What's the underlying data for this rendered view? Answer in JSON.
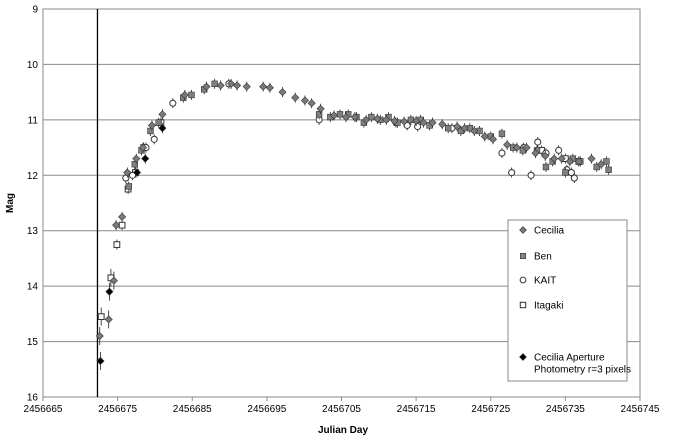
{
  "chart_data": {
    "type": "scatter",
    "xlabel": "Julian Day",
    "ylabel": "Mag",
    "xlim": [
      2456665,
      2456745
    ],
    "ylim": [
      9,
      16
    ],
    "y_inverted": true,
    "grid": "horizontal",
    "legend_position": "right",
    "x_ticks": [
      "2456665",
      "2456675",
      "2456685",
      "2456695",
      "2456705",
      "2456715",
      "2456725",
      "2456735",
      "2456745"
    ],
    "y_ticks": [
      "9",
      "10",
      "11",
      "12",
      "13",
      "14",
      "15",
      "16"
    ],
    "vertical_marker_x": 2456672.3,
    "series": [
      {
        "name": "Cecilia",
        "marker": "diamond-gray",
        "points": [
          [
            2456672.6,
            14.9
          ],
          [
            2456673.8,
            14.6
          ],
          [
            2456674.5,
            13.9
          ],
          [
            2456674.8,
            12.9
          ],
          [
            2456675.6,
            12.75
          ],
          [
            2456676.3,
            11.95
          ],
          [
            2456677.5,
            11.7
          ],
          [
            2456678.4,
            11.5
          ],
          [
            2456679.6,
            11.1
          ],
          [
            2456681.0,
            10.9
          ],
          [
            2456684.0,
            10.55
          ],
          [
            2456686.9,
            10.4
          ],
          [
            2456688.8,
            10.38
          ],
          [
            2456690.2,
            10.35
          ],
          [
            2456691.0,
            10.38
          ],
          [
            2456692.3,
            10.4
          ],
          [
            2456694.5,
            10.4
          ],
          [
            2456695.4,
            10.42
          ],
          [
            2456697.1,
            10.5
          ],
          [
            2456698.8,
            10.6
          ],
          [
            2456700.1,
            10.65
          ],
          [
            2456701.0,
            10.7
          ],
          [
            2456702.2,
            10.8
          ],
          [
            2456704.0,
            10.92
          ],
          [
            2456705.6,
            10.95
          ],
          [
            2456706.8,
            10.95
          ],
          [
            2456708.3,
            11.0
          ],
          [
            2456709.8,
            10.98
          ],
          [
            2456711.0,
            11.0
          ],
          [
            2456712.1,
            11.02
          ],
          [
            2456713.4,
            11.03
          ],
          [
            2456715.0,
            11.02
          ],
          [
            2456716.0,
            11.05
          ],
          [
            2456717.2,
            11.05
          ],
          [
            2456718.5,
            11.08
          ],
          [
            2456720.5,
            11.12
          ],
          [
            2456721.5,
            11.15
          ],
          [
            2456722.8,
            11.2
          ],
          [
            2456724.2,
            11.3
          ],
          [
            2456725.3,
            11.35
          ],
          [
            2456727.2,
            11.45
          ],
          [
            2456728.5,
            11.5
          ],
          [
            2456729.8,
            11.5
          ],
          [
            2456731.0,
            11.6
          ],
          [
            2456732.3,
            11.65
          ],
          [
            2456733.5,
            11.7
          ],
          [
            2456734.5,
            11.7
          ],
          [
            2456735.6,
            11.75
          ],
          [
            2456736.8,
            11.75
          ],
          [
            2456738.5,
            11.7
          ],
          [
            2456739.8,
            11.8
          ]
        ]
      },
      {
        "name": "Ben",
        "marker": "square-gray",
        "points": [
          [
            2456676.5,
            12.2
          ],
          [
            2456677.3,
            11.8
          ],
          [
            2456678.2,
            11.55
          ],
          [
            2456679.4,
            11.2
          ],
          [
            2456680.5,
            11.05
          ],
          [
            2456683.8,
            10.6
          ],
          [
            2456684.9,
            10.55
          ],
          [
            2456686.6,
            10.45
          ],
          [
            2456688.0,
            10.35
          ],
          [
            2456702.0,
            10.9
          ],
          [
            2456703.5,
            10.95
          ],
          [
            2456704.8,
            10.9
          ],
          [
            2456705.9,
            10.9
          ],
          [
            2456707.0,
            10.95
          ],
          [
            2456708.0,
            11.05
          ],
          [
            2456709.0,
            10.95
          ],
          [
            2456710.2,
            11.0
          ],
          [
            2456711.3,
            10.95
          ],
          [
            2456712.5,
            11.05
          ],
          [
            2456714.3,
            11.0
          ],
          [
            2456715.6,
            11.0
          ],
          [
            2456716.8,
            11.1
          ],
          [
            2456719.3,
            11.15
          ],
          [
            2456721.0,
            11.2
          ],
          [
            2456722.2,
            11.15
          ],
          [
            2456723.5,
            11.2
          ],
          [
            2456725.0,
            11.3
          ],
          [
            2456726.5,
            11.25
          ],
          [
            2456728.0,
            11.5
          ],
          [
            2456729.3,
            11.55
          ],
          [
            2456731.2,
            11.55
          ],
          [
            2456732.4,
            11.85
          ],
          [
            2456733.3,
            11.75
          ],
          [
            2456735.0,
            11.95
          ],
          [
            2456736.0,
            11.7
          ],
          [
            2456737.0,
            11.75
          ],
          [
            2456739.2,
            11.85
          ],
          [
            2456740.5,
            11.75
          ],
          [
            2456740.8,
            11.9
          ]
        ]
      },
      {
        "name": "KAIT",
        "marker": "circle-open",
        "points": [
          [
            2456676.1,
            12.05
          ],
          [
            2456677.0,
            12.0
          ],
          [
            2456678.8,
            11.5
          ],
          [
            2456679.9,
            11.35
          ],
          [
            2456682.4,
            10.7
          ],
          [
            2456689.9,
            10.35
          ],
          [
            2456702.0,
            11.0
          ],
          [
            2456712.3,
            11.05
          ],
          [
            2456713.8,
            11.1
          ],
          [
            2456715.2,
            11.12
          ],
          [
            2456719.8,
            11.15
          ],
          [
            2456726.5,
            11.6
          ],
          [
            2456727.8,
            11.95
          ],
          [
            2456729.4,
            11.5
          ],
          [
            2456730.4,
            12.0
          ],
          [
            2456731.3,
            11.4
          ],
          [
            2456732.4,
            11.6
          ],
          [
            2456734.1,
            11.55
          ],
          [
            2456735.2,
            11.9
          ],
          [
            2456736.2,
            12.05
          ],
          [
            2456735.8,
            11.95
          ]
        ]
      },
      {
        "name": "Itagaki",
        "marker": "square-open",
        "points": [
          [
            2456672.8,
            14.55
          ],
          [
            2456674.1,
            13.85
          ],
          [
            2456674.9,
            13.25
          ],
          [
            2456675.6,
            12.9
          ],
          [
            2456676.4,
            12.25
          ],
          [
            2456677.4,
            11.95
          ],
          [
            2456678.5,
            11.5
          ],
          [
            2456680.8,
            11.05
          ],
          [
            2456731.8,
            11.55
          ],
          [
            2456735.0,
            11.7
          ],
          [
            2456736.8,
            11.75
          ]
        ]
      },
      {
        "name": "Cecilia Aperture Photometry r=3 pixels",
        "marker": "diamond-black",
        "points": [
          [
            2456672.7,
            15.35
          ],
          [
            2456673.9,
            14.1
          ],
          [
            2456677.6,
            11.95
          ],
          [
            2456678.7,
            11.7
          ],
          [
            2456681.0,
            11.15
          ]
        ]
      }
    ]
  },
  "legend": {
    "items": [
      {
        "key": "cecilia",
        "label_lines": [
          "Cecilia"
        ]
      },
      {
        "key": "ben",
        "label_lines": [
          "Ben"
        ]
      },
      {
        "key": "kait",
        "label_lines": [
          "KAIT"
        ]
      },
      {
        "key": "itagaki",
        "label_lines": [
          "Itagaki"
        ]
      },
      {
        "key": "cecilia-aperture",
        "label_lines": [
          "Cecilia Aperture",
          "Photometry r=3 pixels"
        ]
      }
    ]
  }
}
